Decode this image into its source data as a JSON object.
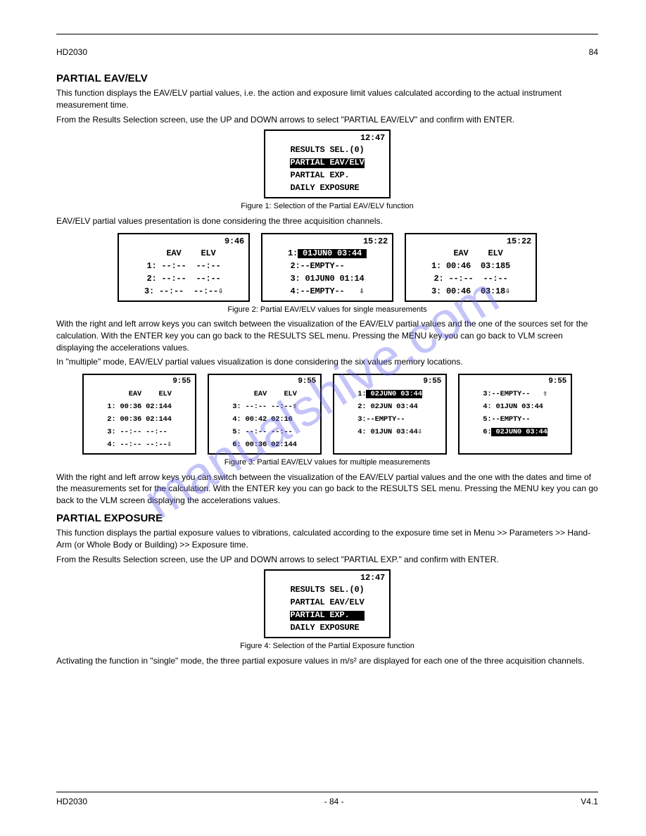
{
  "header": {
    "doc_title": "HD2030",
    "page_num": "84"
  },
  "section1": {
    "title": "PARTIAL EAV/ELV",
    "para1": "This function displays the EAV/ELV partial values, i.e. the action and exposure limit values calculated according to the actual instrument measurement time.",
    "para2": "From the Results Selection screen, use the UP and DOWN arrows to select \"PARTIAL EAV/ELV\" and confirm with ENTER.",
    "fig1": {
      "screen": {
        "clock": "12:47",
        "lines": [
          {
            "t": "RESULTS SEL.(0)",
            "inv": false
          },
          {
            "t": "PARTIAL EAV/ELV",
            "inv": true
          },
          {
            "t": "PARTIAL EXP.   ",
            "inv": false
          },
          {
            "t": "DAILY EXPOSURE ",
            "inv": false
          }
        ],
        "width": "md"
      },
      "caption": "Figure 1: Selection of the Partial EAV/ELV function"
    },
    "para3": "EAV/ELV partial values presentation is done considering the three acquisition channels.",
    "fig2": {
      "screens": [
        {
          "clock": "9:46",
          "width": "wd",
          "lines": [
            {
              "t": "    EAV    ELV ",
              "inv": false
            },
            {
              "t": "1: --:--  --:--",
              "inv": false
            },
            {
              "t": "2: --:--  --:--",
              "inv": false
            },
            {
              "t": "3: --:--  --:--⇩",
              "inv": false
            }
          ]
        },
        {
          "clock": "15:22",
          "width": "wd",
          "lines": [
            {
              "t": "1:",
              "inv": false,
              "suffix": {
                "t": " 01JUN0 03:44 ",
                "inv": true
              }
            },
            {
              "t": "2:--EMPTY--    ",
              "inv": false
            },
            {
              "t": "3: 01JUN0 01:14",
              "inv": false
            },
            {
              "t": "4:--EMPTY--   ⇩",
              "inv": false
            }
          ]
        },
        {
          "clock": "15:22",
          "width": "wd",
          "lines": [
            {
              "t": "    EAV    ELV ",
              "inv": false
            },
            {
              "t": "1: 00:46  03:185",
              "inv": false
            },
            {
              "t": "2: --:--  --:--",
              "inv": false
            },
            {
              "t": "3: 00:46  03:18⇩",
              "inv": false
            }
          ]
        }
      ],
      "caption": "Figure 2: Partial EAV/ELV values for single measurements"
    },
    "para4": "With the right and left arrow keys you can switch between the visualization of the EAV/ELV partial values and the one of the sources set for the calculation. With the ENTER key you can go back to the RESULTS SEL menu. Pressing the MENU key you can go back to VLM screen displaying the accelerations values.",
    "para5": "In \"multiple\" mode, EAV/ELV partial values visualization is done considering the six values memory locations.",
    "fig3": {
      "screens": [
        {
          "clock": "9:55",
          "width": "nw",
          "sm": true,
          "lines": [
            {
              "t": "     EAV    ELV",
              "inv": false
            },
            {
              "t": "1: 00:36 02:144",
              "inv": false
            },
            {
              "t": "2: 00:36 02:144",
              "inv": false
            },
            {
              "t": "3: --:-- --:-- ",
              "inv": false
            },
            {
              "t": "4: --:-- --:--⇩",
              "inv": false
            }
          ]
        },
        {
          "clock": "9:55",
          "width": "nw",
          "sm": true,
          "lines": [
            {
              "t": "     EAV    ELV",
              "inv": false
            },
            {
              "t": "3: --:-- --:--⇧",
              "inv": false
            },
            {
              "t": "4: 00:42 02:16 ",
              "inv": false
            },
            {
              "t": "5: --:-- --:-- ",
              "inv": false
            },
            {
              "t": "6: 00:36 02:144",
              "inv": false
            }
          ]
        },
        {
          "clock": "9:55",
          "width": "nw",
          "sm": true,
          "lines": [
            {
              "t": "1:",
              "inv": false,
              "suffix": {
                "t": " 02JUN0 03:44",
                "inv": true
              }
            },
            {
              "t": "2: 02JUN 03:44 ",
              "inv": false
            },
            {
              "t": "3:--EMPTY--    ",
              "inv": false
            },
            {
              "t": "4: 01JUN 03:44⇩",
              "inv": false
            }
          ]
        },
        {
          "clock": "9:55",
          "width": "nw",
          "sm": true,
          "lines": [
            {
              "t": "3:--EMPTY--   ⇧",
              "inv": false
            },
            {
              "t": "4: 01JUN 03:44 ",
              "inv": false
            },
            {
              "t": "5:--EMPTY--    ",
              "inv": false
            },
            {
              "t": "6:",
              "inv": false,
              "suffix": {
                "t": " 02JUN0 03:44",
                "inv": true
              }
            }
          ]
        }
      ],
      "caption": "Figure 3: Partial EAV/ELV values for multiple measurements"
    },
    "para6": "With the right and left arrow keys you can switch between the visualization of the EAV/ELV partial values and the one with the dates and time of the measurements set for the calculation. With the ENTER key you can go back to the RESULTS SEL menu. Pressing the MENU key you can go back to the VLM screen displaying the accelerations values."
  },
  "section2": {
    "title": "PARTIAL EXPOSURE",
    "para1": "This function displays the partial exposure values to vibrations, calculated according to the exposure time set in Menu >> Parameters >> Hand-Arm (or Whole Body or Building) >> Exposure time.",
    "para2": "From the Results Selection screen, use the UP and DOWN arrows to select \"PARTIAL EXP.\" and confirm with ENTER.",
    "fig4": {
      "screen": {
        "clock": "12:47",
        "lines": [
          {
            "t": "RESULTS SEL.(0)",
            "inv": false
          },
          {
            "t": "PARTIAL EAV/ELV",
            "inv": false
          },
          {
            "t": "PARTIAL EXP.   ",
            "inv": true
          },
          {
            "t": "DAILY EXPOSURE ",
            "inv": false
          }
        ],
        "width": "md"
      },
      "caption": "Figure 4: Selection of the Partial Exposure function"
    },
    "para3": "Activating the function in \"single\" mode, the three partial exposure values in m/s² are displayed for each one of the three acquisition channels."
  },
  "footer": {
    "left": "HD2030",
    "center": "- 84 -",
    "right": "V4.1"
  },
  "watermark": "manualshive.com"
}
